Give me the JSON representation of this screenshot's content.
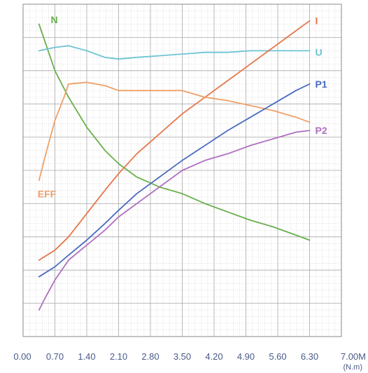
{
  "chart_data": {
    "type": "line",
    "title": "",
    "xlabel": "",
    "xunit": "(N.m)",
    "xlim": [
      0,
      7.0
    ],
    "ylim": [
      0,
      100
    ],
    "grid": true,
    "x_tick_labels": [
      "0.00",
      "0.70",
      "1.40",
      "2.10",
      "2.80",
      "3.50",
      "4.20",
      "4.90",
      "5.60",
      "6.30",
      "7.00M"
    ],
    "series": [
      {
        "name": "N",
        "color": "#6ab04c",
        "label_anchor": [
          0.3,
          93
        ],
        "x": [
          0.35,
          0.7,
          1.0,
          1.4,
          1.8,
          2.1,
          2.5,
          3.0,
          3.5,
          4.0,
          4.5,
          5.0,
          5.5,
          6.0,
          6.3
        ],
        "y": [
          94,
          80,
          72,
          63,
          56,
          52,
          48,
          45,
          43,
          40,
          37.5,
          35,
          33,
          30.5,
          29
        ]
      },
      {
        "name": "U",
        "color": "#6cc5d4",
        "label_anchor": [
          6.3,
          85.5
        ],
        "x": [
          0.35,
          0.7,
          1.0,
          1.4,
          1.8,
          2.1,
          2.5,
          3.0,
          3.5,
          4.0,
          4.5,
          5.0,
          5.5,
          6.0,
          6.3
        ],
        "y": [
          86,
          87,
          87.5,
          86,
          84,
          83.5,
          84,
          84.5,
          85,
          85.5,
          85.5,
          86,
          86,
          86,
          86
        ]
      },
      {
        "name": "I",
        "color": "#e8764a",
        "label_anchor": [
          6.3,
          95
        ],
        "x": [
          0.35,
          0.7,
          1.0,
          1.4,
          1.8,
          2.1,
          2.5,
          3.0,
          3.5,
          4.0,
          4.5,
          5.0,
          5.5,
          6.0,
          6.3
        ],
        "y": [
          23,
          26,
          30,
          37,
          44,
          49,
          55,
          61,
          67,
          72,
          77,
          82,
          87,
          92,
          95
        ]
      },
      {
        "name": "EFF",
        "color": "#f0a068",
        "label_anchor": [
          0.35,
          44
        ],
        "x": [
          0.35,
          0.5,
          0.7,
          0.9,
          1.0,
          1.4,
          1.8,
          2.1,
          2.5,
          3.0,
          3.5,
          4.0,
          4.5,
          5.0,
          5.5,
          6.0,
          6.3
        ],
        "y": [
          47,
          55,
          65,
          72,
          76,
          76.5,
          75.5,
          74,
          74,
          74,
          74,
          72,
          71,
          69.5,
          68,
          66,
          64.5
        ]
      },
      {
        "name": "P1",
        "color": "#4a6cc0",
        "label_anchor": [
          6.3,
          76
        ],
        "x": [
          0.35,
          0.7,
          1.0,
          1.4,
          1.8,
          2.1,
          2.5,
          3.0,
          3.5,
          4.0,
          4.5,
          5.0,
          5.5,
          6.0,
          6.3
        ],
        "y": [
          18,
          21,
          24.5,
          29,
          34,
          38,
          43,
          48,
          53,
          57.5,
          62,
          66,
          70,
          74,
          76
        ]
      },
      {
        "name": "P2",
        "color": "#b070c0",
        "label_anchor": [
          6.3,
          62
        ],
        "x": [
          0.35,
          0.5,
          0.7,
          1.0,
          1.4,
          1.8,
          2.1,
          2.5,
          3.0,
          3.5,
          4.0,
          4.5,
          5.0,
          5.5,
          6.0,
          6.3
        ],
        "y": [
          8,
          12,
          17,
          23,
          27.5,
          32,
          36,
          40,
          45,
          50,
          53,
          55,
          57.5,
          59.5,
          61.5,
          62
        ]
      }
    ]
  }
}
